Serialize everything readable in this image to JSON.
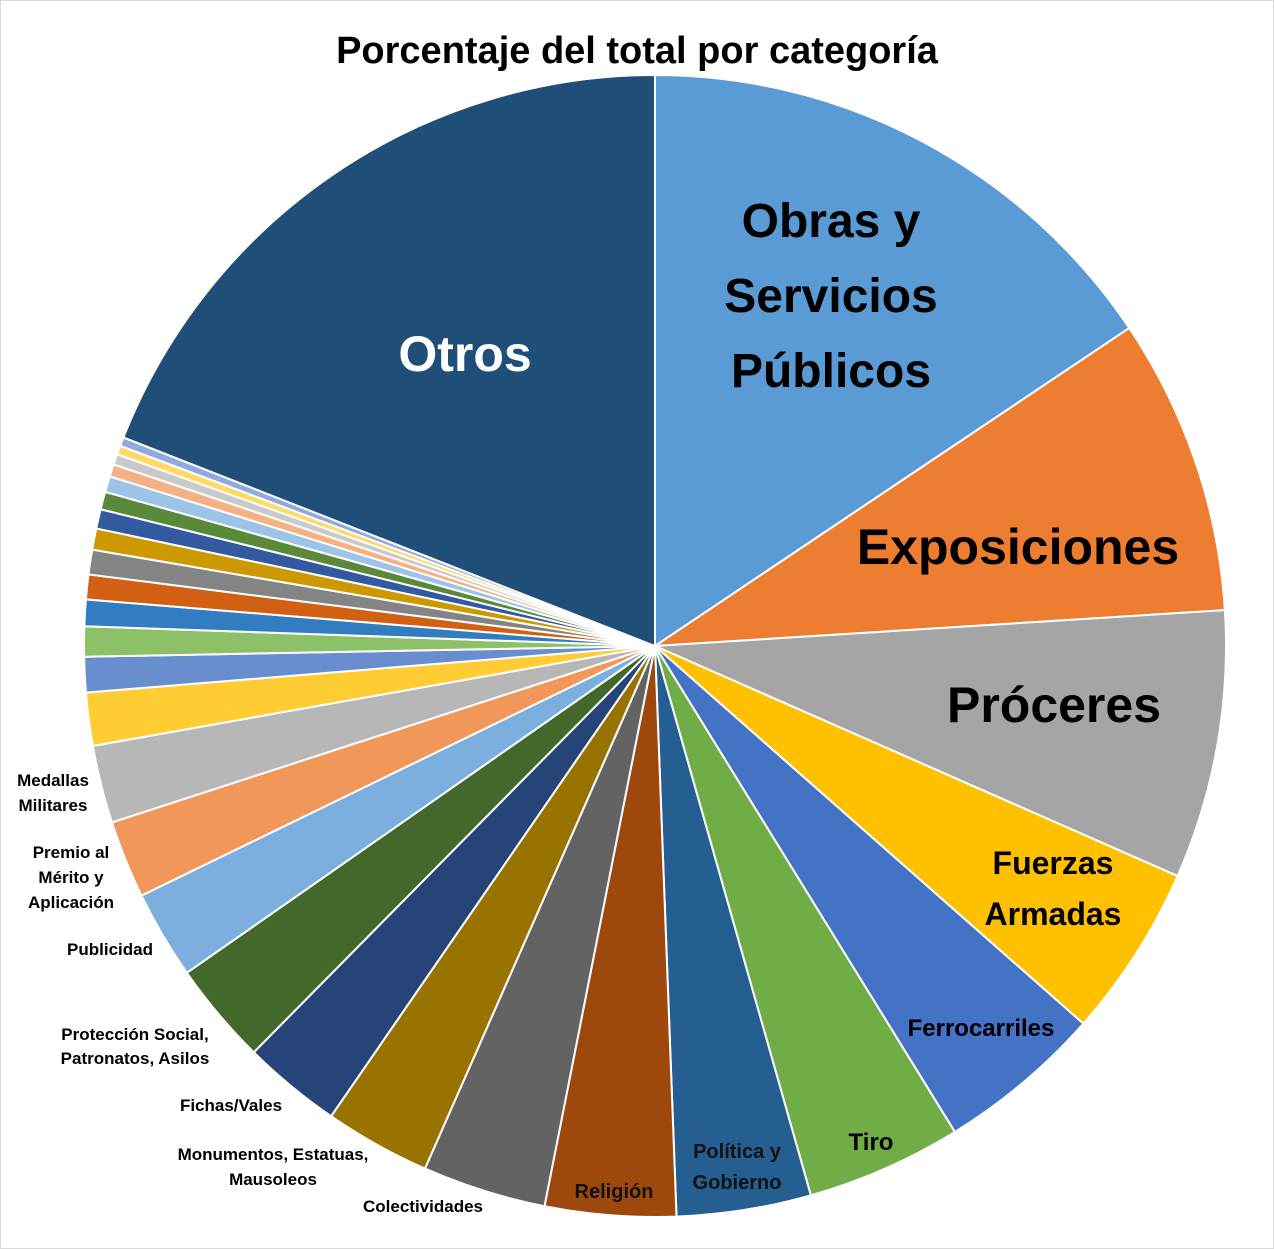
{
  "chart_data": {
    "type": "pie",
    "title": "Porcentaje del total por categoría",
    "start_angle_deg": 0,
    "direction": "clockwise",
    "slices": [
      {
        "label": [
          "Obras y",
          "Servicios",
          "Públicos"
        ],
        "value": 15.6,
        "color": "#5B9BD5"
      },
      {
        "label": [
          "Exposiciones"
        ],
        "value": 8.4,
        "color": "#ED7D31"
      },
      {
        "label": [
          "Próceres"
        ],
        "value": 7.6,
        "color": "#A5A5A5"
      },
      {
        "label": [
          "Fuerzas",
          "Armadas"
        ],
        "value": 4.9,
        "color": "#FFC000"
      },
      {
        "label": [
          "Ferrocarriles"
        ],
        "value": 4.7,
        "color": "#4472C4"
      },
      {
        "label": [
          "Tiro"
        ],
        "value": 4.4,
        "color": "#70AD47"
      },
      {
        "label": [
          "Política y",
          "Gobierno"
        ],
        "value": 3.8,
        "color": "#255E91"
      },
      {
        "label": [
          "Religión"
        ],
        "value": 3.7,
        "color": "#9E480E"
      },
      {
        "label": [
          "Colectividades"
        ],
        "value": 3.5,
        "color": "#636363"
      },
      {
        "label": [
          "Monumentos, Estatuas,",
          "Mausoleos"
        ],
        "value": 3.0,
        "color": "#997300"
      },
      {
        "label": [
          "Fichas/Vales"
        ],
        "value": 2.8,
        "color": "#264478"
      },
      {
        "label": [
          "Protección Social,",
          "Patronatos, Asilos"
        ],
        "value": 2.9,
        "color": "#43682B"
      },
      {
        "label": [
          "Publicidad"
        ],
        "value": 2.5,
        "color": "#7CAFDD"
      },
      {
        "label": [
          "Premio al",
          "Mérito y",
          "Aplicación"
        ],
        "value": 2.2,
        "color": "#F1975A"
      },
      {
        "label": [
          "Medallas",
          "Militares"
        ],
        "value": 2.2,
        "color": "#B7B7B7"
      },
      {
        "label": [],
        "value": 1.5,
        "color": "#FFCD33"
      },
      {
        "label": [],
        "value": 1.0,
        "color": "#698ED0"
      },
      {
        "label": [],
        "value": 0.85,
        "color": "#8CC168"
      },
      {
        "label": [],
        "value": 0.75,
        "color": "#327DC2"
      },
      {
        "label": [],
        "value": 0.7,
        "color": "#D26012"
      },
      {
        "label": [],
        "value": 0.7,
        "color": "#848484"
      },
      {
        "label": [],
        "value": 0.6,
        "color": "#CC9A00"
      },
      {
        "label": [],
        "value": 0.55,
        "color": "#335AA1"
      },
      {
        "label": [],
        "value": 0.5,
        "color": "#5A8A39"
      },
      {
        "label": [],
        "value": 0.45,
        "color": "#9DC3E6"
      },
      {
        "label": [],
        "value": 0.35,
        "color": "#F4B183"
      },
      {
        "label": [],
        "value": 0.3,
        "color": "#C9C9C9"
      },
      {
        "label": [],
        "value": 0.25,
        "color": "#FFD966"
      },
      {
        "label": [],
        "value": 0.25,
        "color": "#8FAADC"
      },
      {
        "label": [
          "Otros"
        ],
        "value": 19.05,
        "color": "#1F4E79"
      }
    ]
  }
}
